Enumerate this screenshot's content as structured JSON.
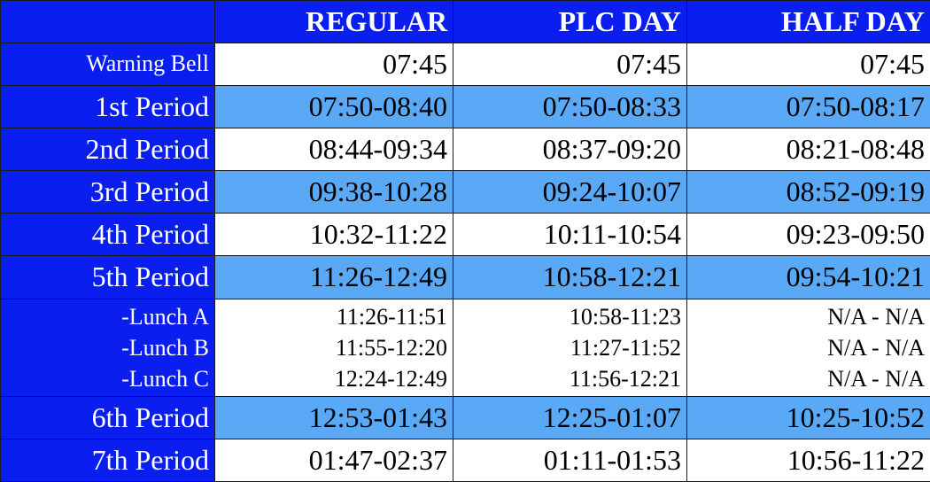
{
  "headers": {
    "regular": "REGULAR",
    "plc": "PLC DAY",
    "half": "HALF DAY"
  },
  "rows": [
    {
      "label": "Warning Bell",
      "regular": "07:45",
      "plc": "07:45",
      "half": "07:45"
    },
    {
      "label": "1st Period",
      "regular": "07:50-08:40",
      "plc": "07:50-08:33",
      "half": "07:50-08:17"
    },
    {
      "label": "2nd Period",
      "regular": "08:44-09:34",
      "plc": "08:37-09:20",
      "half": "08:21-08:48"
    },
    {
      "label": "3rd Period",
      "regular": "09:38-10:28",
      "plc": "09:24-10:07",
      "half": "08:52-09:19"
    },
    {
      "label": "4th Period",
      "regular": "10:32-11:22",
      "plc": "10:11-10:54",
      "half": "09:23-09:50"
    },
    {
      "label": "5th Period",
      "regular": "11:26-12:49",
      "plc": "10:58-12:21",
      "half": "09:54-10:21"
    }
  ],
  "lunches": [
    {
      "label": "-Lunch A",
      "regular": "11:26-11:51",
      "plc": "10:58-11:23",
      "half": "N/A - N/A"
    },
    {
      "label": "-Lunch B",
      "regular": "11:55-12:20",
      "plc": "11:27-11:52",
      "half": "N/A - N/A"
    },
    {
      "label": "-Lunch C",
      "regular": "12:24-12:49",
      "plc": "11:56-12:21",
      "half": "N/A - N/A"
    }
  ],
  "after_rows": [
    {
      "label": "6th Period",
      "regular": "12:53-01:43",
      "plc": "12:25-01:07",
      "half": "10:25-10:52"
    },
    {
      "label": "7th Period",
      "regular": "01:47-02:37",
      "plc": "01:11-01:53",
      "half": "10:56-11:22"
    }
  ],
  "colors": {
    "header_blue": "#0a1ef0",
    "row_light_blue": "#5aa9f7",
    "row_white": "#ffffff"
  }
}
